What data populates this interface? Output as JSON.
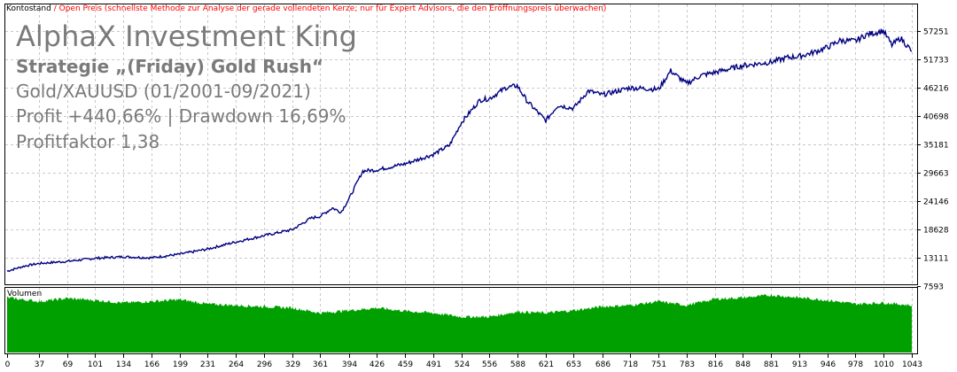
{
  "legend": {
    "balance_label": "Kontostand",
    "separator": " / ",
    "open_price_label": "Open Preis (schnellste Methode zur Analyse der gerade vollendeten Kerze; nur für Expert Advisors, die den Eröffnungspreis überwachen)",
    "balance_color": "#000000",
    "open_price_color": "#ff0000"
  },
  "overlay": {
    "title": "AlphaX Investment King",
    "strategy": "Strategie „(Friday) Gold Rush“",
    "symbol_period": "Gold/XAUUSD  (01/2001-09/2021)",
    "profit_drawdown": "Profit +440,66% | Drawdown 16,69%",
    "profit_factor": "Profitfaktor 1,38"
  },
  "volume_label": "Volumen",
  "colors": {
    "balance_line": "#000080",
    "volume_fill": "#00a000",
    "grid": "#c8c8c8",
    "border": "#000000"
  },
  "chart_data": {
    "type": "line",
    "grid": true,
    "ylim": [
      7593,
      57251
    ],
    "y_ticks": [
      7593,
      13111,
      18628,
      24146,
      29663,
      35181,
      40698,
      46216,
      51733,
      57251
    ],
    "x_ticks": [
      0,
      37,
      69,
      101,
      134,
      166,
      199,
      231,
      264,
      296,
      329,
      361,
      394,
      426,
      459,
      491,
      524,
      556,
      588,
      621,
      653,
      686,
      718,
      751,
      783,
      816,
      848,
      881,
      913,
      946,
      978,
      1010,
      1043
    ],
    "xlim": [
      0,
      1045
    ],
    "series": [
      {
        "x": [
          0,
          20,
          37,
          69,
          101,
          134,
          166,
          199,
          231,
          264,
          296,
          329,
          350,
          361,
          375,
          385,
          394,
          410,
          426,
          459,
          491,
          510,
          524,
          545,
          556,
          575,
          588,
          600,
          621,
          635,
          653,
          670,
          686,
          718,
          751,
          765,
          783,
          800,
          816,
          848,
          881,
          900,
          913,
          930,
          946,
          960,
          978,
          990,
          1010,
          1020,
          1030,
          1043
        ],
        "y": [
          10500,
          11500,
          12000,
          12400,
          13000,
          13300,
          13100,
          13800,
          14800,
          16200,
          17400,
          18600,
          20800,
          21200,
          22800,
          22000,
          24500,
          30000,
          30200,
          31400,
          33200,
          35000,
          39500,
          43800,
          44100,
          46200,
          46600,
          43500,
          39800,
          42800,
          42200,
          45600,
          44800,
          46200,
          45900,
          49500,
          47000,
          48600,
          49200,
          50500,
          51200,
          52100,
          52300,
          53100,
          54100,
          55400,
          55300,
          56500,
          57300,
          54500,
          55900,
          53300
        ]
      }
    ],
    "volume": {
      "x": [
        0,
        37,
        69,
        101,
        134,
        166,
        199,
        231,
        264,
        296,
        329,
        361,
        394,
        426,
        459,
        491,
        524,
        556,
        588,
        621,
        653,
        686,
        718,
        751,
        783,
        816,
        848,
        881,
        913,
        946,
        978,
        1010,
        1043
      ],
      "values": [
        0.86,
        0.8,
        0.85,
        0.82,
        0.78,
        0.8,
        0.83,
        0.76,
        0.74,
        0.72,
        0.7,
        0.62,
        0.66,
        0.7,
        0.65,
        0.62,
        0.56,
        0.56,
        0.64,
        0.62,
        0.66,
        0.72,
        0.74,
        0.8,
        0.74,
        0.84,
        0.86,
        0.9,
        0.86,
        0.82,
        0.76,
        0.78,
        0.74
      ]
    }
  }
}
